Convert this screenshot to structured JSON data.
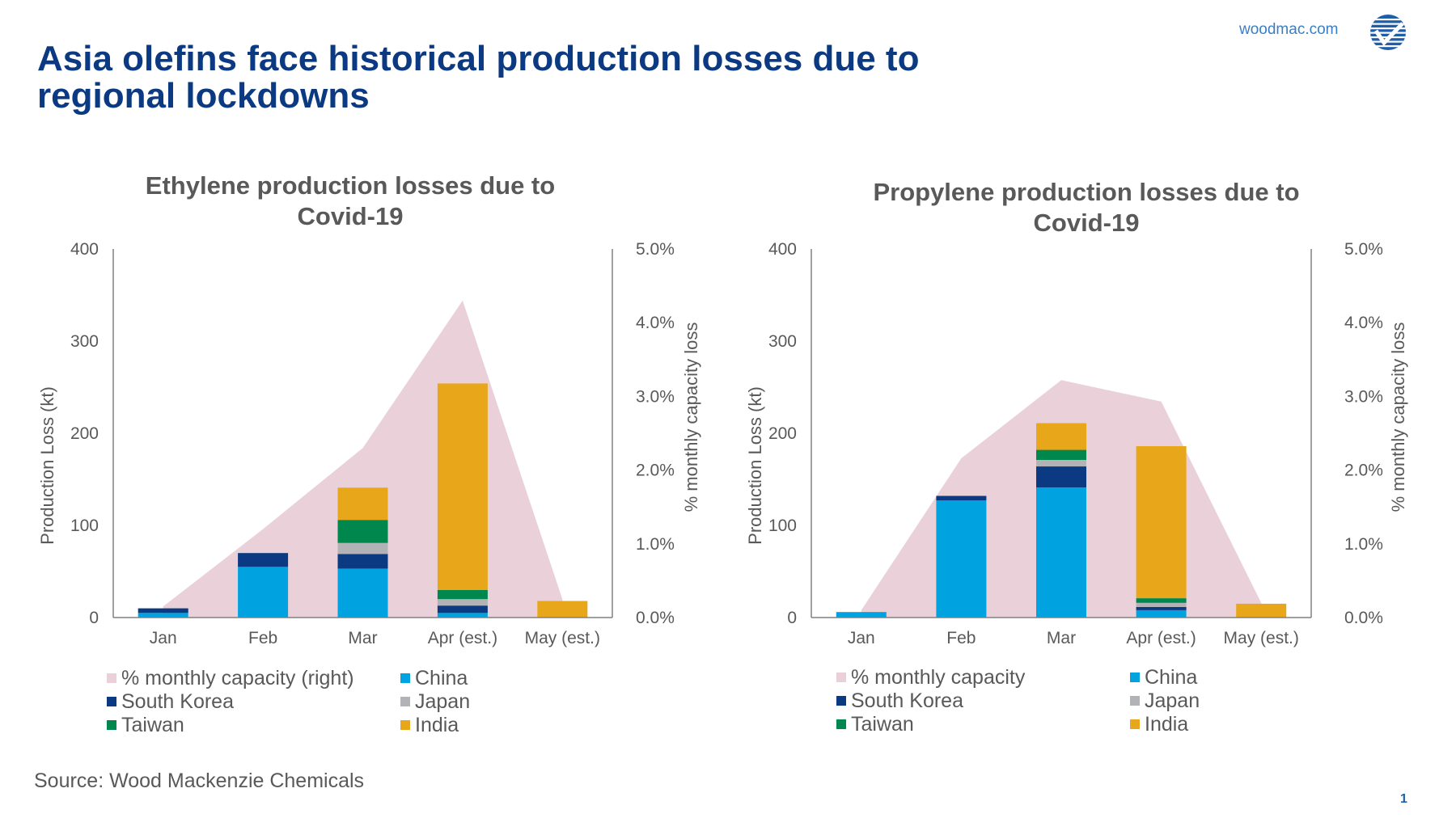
{
  "header": {
    "title_line1": "Asia olefins face historical production losses due to",
    "title_line2": "regional lockdowns",
    "site_link": "woodmac.com",
    "logo_icon": "woodmac-checkmark-globe-icon"
  },
  "footer": {
    "source": "Source: Wood Mackenzie Chemicals",
    "page_number": "1"
  },
  "colors": {
    "title": "#0b3a82",
    "area": "#ead1d9",
    "China": "#00a3e0",
    "South Korea": "#0b3a82",
    "Japan": "#b1b3b6",
    "Taiwan": "#00874e",
    "India": "#e8a71b"
  },
  "chart_data": [
    {
      "type": "bar",
      "stacked": true,
      "title_line1": "Ethylene production losses due to",
      "title_line2": "Covid-19",
      "categories": [
        "Jan",
        "Feb",
        "Mar",
        "Apr (est.)",
        "May (est.)"
      ],
      "ylabel": "Production Loss (kt)",
      "ylim": [
        0,
        400
      ],
      "yticks": [
        "0",
        "100",
        "200",
        "300",
        "400"
      ],
      "y2label": "% monthly capacity loss",
      "y2lim": [
        0,
        5.0
      ],
      "y2ticks": [
        "0.0%",
        "1.0%",
        "2.0%",
        "3.0%",
        "4.0%",
        "5.0%"
      ],
      "grid": false,
      "legend_position": "bottom",
      "series": [
        {
          "name": "China",
          "values": [
            5,
            55,
            53,
            5,
            0
          ]
        },
        {
          "name": "South Korea",
          "values": [
            5,
            15,
            16,
            8,
            0
          ]
        },
        {
          "name": "Japan",
          "values": [
            0,
            0,
            12,
            7,
            0
          ]
        },
        {
          "name": "Taiwan",
          "values": [
            0,
            0,
            25,
            10,
            0
          ]
        },
        {
          "name": "India",
          "values": [
            0,
            0,
            35,
            224,
            18
          ]
        }
      ],
      "area_series": {
        "name": "% monthly capacity (right)",
        "axis": "right",
        "values": [
          0.15,
          1.2,
          2.3,
          4.3,
          0.25
        ]
      },
      "legend": [
        {
          "label": "% monthly capacity (right)",
          "key": "area"
        },
        {
          "label": "China",
          "key": "China"
        },
        {
          "label": "South Korea",
          "key": "South Korea"
        },
        {
          "label": "Japan",
          "key": "Japan"
        },
        {
          "label": "Taiwan",
          "key": "Taiwan"
        },
        {
          "label": "India",
          "key": "India"
        }
      ]
    },
    {
      "type": "bar",
      "stacked": true,
      "title_line1": "Propylene production losses due to",
      "title_line2": "Covid-19",
      "categories": [
        "Jan",
        "Feb",
        "Mar",
        "Apr (est.)",
        "May (est.)"
      ],
      "ylabel": "Production Loss (kt)",
      "ylim": [
        0,
        400
      ],
      "yticks": [
        "0",
        "100",
        "200",
        "300",
        "400"
      ],
      "y2label": "% monthly capacity loss",
      "y2lim": [
        0,
        5.0
      ],
      "y2ticks": [
        "0.0%",
        "1.0%",
        "2.0%",
        "3.0%",
        "4.0%",
        "5.0%"
      ],
      "grid": false,
      "legend_position": "bottom",
      "series": [
        {
          "name": "China",
          "values": [
            6,
            127,
            141,
            8,
            0
          ]
        },
        {
          "name": "South Korea",
          "values": [
            0,
            5,
            23,
            3.5,
            0
          ]
        },
        {
          "name": "Japan",
          "values": [
            0,
            0,
            7,
            4.5,
            0
          ]
        },
        {
          "name": "Taiwan",
          "values": [
            0,
            0,
            11,
            5,
            0
          ]
        },
        {
          "name": "India",
          "values": [
            0,
            0,
            29,
            165,
            15
          ]
        }
      ],
      "area_series": {
        "name": "% monthly capacity",
        "axis": "right",
        "values": [
          0.1,
          2.16,
          3.22,
          2.93,
          0.2
        ]
      },
      "legend": [
        {
          "label": "% monthly capacity",
          "key": "area"
        },
        {
          "label": "China",
          "key": "China"
        },
        {
          "label": "South Korea",
          "key": "South Korea"
        },
        {
          "label": "Japan",
          "key": "Japan"
        },
        {
          "label": "Taiwan",
          "key": "Taiwan"
        },
        {
          "label": "India",
          "key": "India"
        }
      ]
    }
  ]
}
